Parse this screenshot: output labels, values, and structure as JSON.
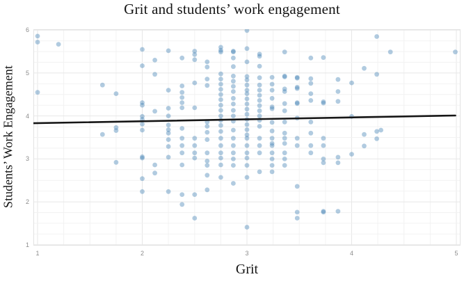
{
  "chart": {
    "title": "Grit and students’ work engagement",
    "xlabel": "Grit",
    "ylabel": "Students’ Work Engagement"
  },
  "chart_data": {
    "type": "scatter",
    "title": "Grit and students’ work engagement",
    "xlabel": "Grit",
    "ylabel": "Students’ Work Engagement",
    "x_range": [
      0.96,
      5.04
    ],
    "y_range": [
      0.98,
      6.02
    ],
    "x_ticks": [
      1,
      2,
      3,
      4,
      5
    ],
    "y_ticks": [
      1,
      2,
      3,
      4,
      5,
      6
    ],
    "minor_grid_step": 0.25,
    "grid": true,
    "legend": "none",
    "marker": {
      "color": "#4682b4",
      "opacity": 0.42,
      "radius": 3.4
    },
    "trend_line": {
      "x": [
        0.96,
        4.99
      ],
      "y": [
        3.83,
        4.01
      ],
      "color": "#161616",
      "width": 2.6
    },
    "colors": {
      "grid_minor": "#f2f2f2",
      "grid_major": "#e7e7e7",
      "panel_border": "#e2e2e2",
      "tick_text": "#8c8c8c",
      "text": "#141414"
    },
    "points": [
      [
        1.0,
        5.86
      ],
      [
        1.0,
        5.72
      ],
      [
        1.0,
        4.55
      ],
      [
        1.2,
        5.67
      ],
      [
        1.62,
        4.72
      ],
      [
        1.62,
        3.57
      ],
      [
        1.75,
        4.52
      ],
      [
        1.75,
        3.73
      ],
      [
        1.75,
        3.66
      ],
      [
        1.75,
        2.92
      ],
      [
        2.0,
        5.55
      ],
      [
        2.0,
        5.17
      ],
      [
        2.0,
        4.31
      ],
      [
        2.0,
        4.25
      ],
      [
        2.0,
        3.99
      ],
      [
        2.0,
        3.92
      ],
      [
        2.0,
        3.81
      ],
      [
        2.0,
        3.67
      ],
      [
        2.0,
        3.05
      ],
      [
        2.0,
        3.02
      ],
      [
        2.0,
        2.54
      ],
      [
        2.0,
        2.24
      ],
      [
        2.12,
        5.3
      ],
      [
        2.12,
        4.97
      ],
      [
        2.12,
        4.11
      ],
      [
        2.12,
        2.86
      ],
      [
        2.12,
        2.67
      ],
      [
        2.25,
        5.52
      ],
      [
        2.25,
        4.6
      ],
      [
        2.25,
        4.18
      ],
      [
        2.25,
        4.0
      ],
      [
        2.25,
        3.79
      ],
      [
        2.25,
        3.68
      ],
      [
        2.25,
        3.6
      ],
      [
        2.25,
        3.45
      ],
      [
        2.25,
        3.29
      ],
      [
        2.25,
        3.04
      ],
      [
        2.25,
        2.24
      ],
      [
        2.38,
        5.35
      ],
      [
        2.38,
        4.7
      ],
      [
        2.38,
        4.55
      ],
      [
        2.38,
        4.43
      ],
      [
        2.38,
        4.31
      ],
      [
        2.38,
        4.19
      ],
      [
        2.38,
        3.71
      ],
      [
        2.38,
        3.48
      ],
      [
        2.38,
        3.31
      ],
      [
        2.38,
        3.14
      ],
      [
        2.38,
        2.86
      ],
      [
        2.38,
        2.17
      ],
      [
        2.38,
        1.94
      ],
      [
        2.5,
        5.51
      ],
      [
        2.5,
        5.43
      ],
      [
        2.5,
        5.31
      ],
      [
        2.5,
        4.77
      ],
      [
        2.5,
        4.19
      ],
      [
        2.5,
        3.48
      ],
      [
        2.5,
        3.31
      ],
      [
        2.5,
        3.14
      ],
      [
        2.5,
        3.02
      ],
      [
        2.5,
        2.17
      ],
      [
        2.5,
        1.62
      ],
      [
        2.62,
        5.26
      ],
      [
        2.62,
        5.14
      ],
      [
        2.62,
        4.86
      ],
      [
        2.62,
        4.71
      ],
      [
        2.62,
        3.86
      ],
      [
        2.62,
        3.76
      ],
      [
        2.62,
        3.62
      ],
      [
        2.62,
        3.45
      ],
      [
        2.62,
        3.14
      ],
      [
        2.62,
        2.95
      ],
      [
        2.62,
        2.85
      ],
      [
        2.62,
        2.62
      ],
      [
        2.62,
        2.28
      ],
      [
        2.75,
        5.6
      ],
      [
        2.75,
        5.53
      ],
      [
        2.75,
        5.49
      ],
      [
        2.75,
        4.98
      ],
      [
        2.75,
        4.86
      ],
      [
        2.75,
        4.74
      ],
      [
        2.75,
        4.62
      ],
      [
        2.75,
        4.5
      ],
      [
        2.75,
        4.38
      ],
      [
        2.75,
        4.25
      ],
      [
        2.75,
        4.13
      ],
      [
        2.75,
        4.0
      ],
      [
        2.75,
        3.9
      ],
      [
        2.75,
        3.78
      ],
      [
        2.75,
        3.64
      ],
      [
        2.75,
        3.48
      ],
      [
        2.75,
        3.31
      ],
      [
        2.75,
        3.14
      ],
      [
        2.75,
        3.02
      ],
      [
        2.75,
        2.86
      ],
      [
        2.75,
        2.57
      ],
      [
        2.87,
        5.51
      ],
      [
        2.87,
        5.49
      ],
      [
        2.87,
        5.35
      ],
      [
        2.87,
        5.15
      ],
      [
        2.87,
        4.93
      ],
      [
        2.87,
        4.81
      ],
      [
        2.87,
        4.69
      ],
      [
        2.87,
        4.57
      ],
      [
        2.87,
        4.41
      ],
      [
        2.87,
        4.28
      ],
      [
        2.87,
        4.13
      ],
      [
        2.87,
        4.0
      ],
      [
        2.87,
        3.88
      ],
      [
        2.87,
        3.67
      ],
      [
        2.87,
        3.48
      ],
      [
        2.87,
        3.31
      ],
      [
        2.87,
        3.14
      ],
      [
        2.87,
        3.0
      ],
      [
        2.87,
        2.85
      ],
      [
        2.87,
        2.43
      ],
      [
        3.0,
        5.99
      ],
      [
        3.0,
        5.57
      ],
      [
        3.0,
        5.26
      ],
      [
        3.0,
        4.92
      ],
      [
        3.0,
        4.84
      ],
      [
        3.0,
        4.72
      ],
      [
        3.0,
        4.6
      ],
      [
        3.0,
        4.52
      ],
      [
        3.0,
        4.4
      ],
      [
        3.0,
        4.28
      ],
      [
        3.0,
        4.16
      ],
      [
        3.0,
        4.04
      ],
      [
        3.0,
        3.92
      ],
      [
        3.0,
        3.8
      ],
      [
        3.0,
        3.68
      ],
      [
        3.0,
        3.56
      ],
      [
        3.0,
        3.48
      ],
      [
        3.0,
        3.31
      ],
      [
        3.0,
        3.14
      ],
      [
        3.0,
        3.02
      ],
      [
        3.0,
        2.85
      ],
      [
        3.0,
        2.57
      ],
      [
        3.0,
        1.41
      ],
      [
        3.12,
        5.44
      ],
      [
        3.12,
        5.39
      ],
      [
        3.12,
        5.16
      ],
      [
        3.12,
        4.89
      ],
      [
        3.12,
        4.72
      ],
      [
        3.12,
        4.6
      ],
      [
        3.12,
        4.48
      ],
      [
        3.12,
        4.36
      ],
      [
        3.12,
        4.24
      ],
      [
        3.12,
        4.12
      ],
      [
        3.12,
        4.0
      ],
      [
        3.12,
        3.9
      ],
      [
        3.12,
        3.76
      ],
      [
        3.12,
        3.48
      ],
      [
        3.12,
        3.31
      ],
      [
        3.12,
        3.14
      ],
      [
        3.12,
        2.7
      ],
      [
        3.24,
        4.9
      ],
      [
        3.24,
        4.74
      ],
      [
        3.24,
        4.6
      ],
      [
        3.24,
        4.41
      ],
      [
        3.24,
        4.21
      ],
      [
        3.24,
        4.17
      ],
      [
        3.24,
        3.85
      ],
      [
        3.24,
        3.65
      ],
      [
        3.24,
        3.48
      ],
      [
        3.24,
        3.36
      ],
      [
        3.24,
        3.31
      ],
      [
        3.24,
        3.14
      ],
      [
        3.24,
        3.0
      ],
      [
        3.24,
        2.85
      ],
      [
        3.24,
        2.7
      ],
      [
        3.36,
        5.49
      ],
      [
        3.36,
        4.93
      ],
      [
        3.36,
        4.91
      ],
      [
        3.36,
        4.63
      ],
      [
        3.36,
        4.57
      ],
      [
        3.36,
        4.29
      ],
      [
        3.36,
        4.12
      ],
      [
        3.36,
        3.86
      ],
      [
        3.36,
        3.6
      ],
      [
        3.36,
        3.48
      ],
      [
        3.36,
        3.36
      ],
      [
        3.36,
        3.14
      ],
      [
        3.36,
        3.0
      ],
      [
        3.36,
        2.85
      ],
      [
        3.48,
        4.9
      ],
      [
        3.48,
        4.88
      ],
      [
        3.48,
        4.67
      ],
      [
        3.48,
        4.64
      ],
      [
        3.48,
        4.31
      ],
      [
        3.48,
        4.29
      ],
      [
        3.48,
        3.95
      ],
      [
        3.48,
        3.48
      ],
      [
        3.48,
        3.31
      ],
      [
        3.48,
        2.36
      ],
      [
        3.48,
        1.76
      ],
      [
        3.48,
        1.62
      ],
      [
        3.61,
        5.35
      ],
      [
        3.61,
        4.87
      ],
      [
        3.61,
        4.76
      ],
      [
        3.61,
        4.52
      ],
      [
        3.61,
        4.36
      ],
      [
        3.61,
        3.86
      ],
      [
        3.61,
        3.6
      ],
      [
        3.61,
        3.31
      ],
      [
        3.61,
        3.14
      ],
      [
        3.73,
        5.36
      ],
      [
        3.73,
        4.33
      ],
      [
        3.73,
        4.3
      ],
      [
        3.73,
        3.48
      ],
      [
        3.73,
        3.31
      ],
      [
        3.73,
        3.0
      ],
      [
        3.73,
        2.91
      ],
      [
        3.73,
        1.78
      ],
      [
        3.73,
        1.76
      ],
      [
        3.87,
        4.85
      ],
      [
        3.87,
        4.57
      ],
      [
        3.87,
        4.34
      ],
      [
        3.87,
        3.04
      ],
      [
        3.87,
        2.91
      ],
      [
        3.87,
        1.78
      ],
      [
        4.0,
        4.77
      ],
      [
        4.0,
        3.99
      ],
      [
        4.0,
        3.11
      ],
      [
        4.12,
        5.11
      ],
      [
        4.12,
        3.57
      ],
      [
        4.12,
        3.3
      ],
      [
        4.24,
        5.85
      ],
      [
        4.24,
        4.97
      ],
      [
        4.24,
        3.64
      ],
      [
        4.24,
        3.47
      ],
      [
        4.28,
        3.67
      ],
      [
        4.37,
        5.49
      ],
      [
        4.99,
        5.49
      ]
    ]
  }
}
